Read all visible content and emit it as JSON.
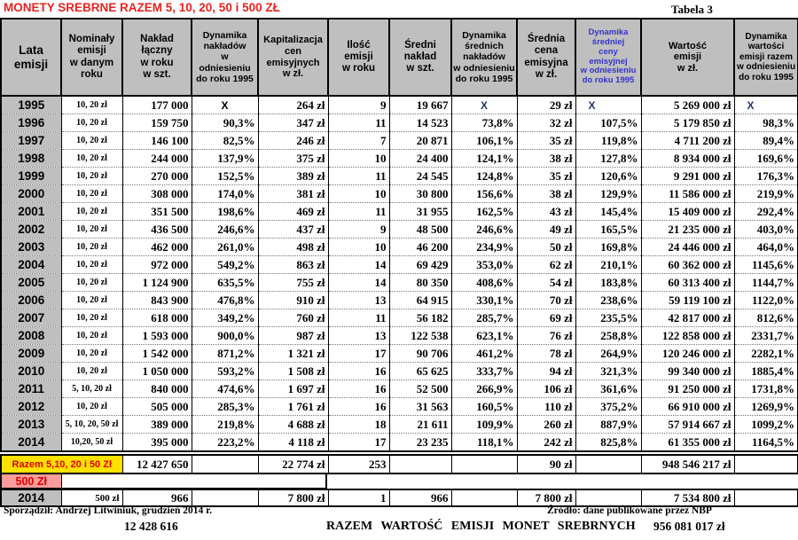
{
  "title": "MONETY SREBRNE RAZEM 5, 10, 20, 50 i 500 ZŁ",
  "table_number": "Tabela 3",
  "colors": {
    "title_red": "#E8231F",
    "label_red": "#E00000",
    "header_gray": "#BFBFBF",
    "razem_yellow": "#FFE100",
    "band_pink": "#F89C9C",
    "blue_header": "#3333CC",
    "x_blue": "#1F3864"
  },
  "table": {
    "headers": [
      "Lata\nemisji",
      "Nominały\nemisji\nw danym\nroku",
      "Nakład\nłączny\nw roku\nw szt.",
      "Dynamika\nnakładów\nw\nodniesieniu\ndo roku 1995",
      "Kapitalizacja\ncen\nemisyjnych\nw zł.",
      "Ilość\nemisji\nw roku",
      "Średni\nnakład\nw szt.",
      "Dynamika\nśrednich\nnakładów\nw odniesieniu\ndo roku 1995",
      "Średnia\ncena\nemisyjna\nw zł.",
      "Dynamika\nśredniej\nceny\nemisyjnej\nw odniesieniu\ndo roku 1995",
      "Wartość\nemisji\nw zł.",
      "Dynamika\nwartości\nemisji razem\nw odniesieniu\ndo roku 1995"
    ],
    "rows": [
      [
        "1995",
        "10, 20 zł",
        "177 000",
        "X",
        "264 zł",
        "9",
        "19 667",
        "X",
        "29 zł",
        "X",
        "5 269 000 zł",
        "X"
      ],
      [
        "1996",
        "10, 20 zł",
        "159 750",
        "90,3%",
        "347 zł",
        "11",
        "14 523",
        "73,8%",
        "32 zł",
        "107,5%",
        "5 179 850 zł",
        "98,3%"
      ],
      [
        "1997",
        "10, 20 zł",
        "146 100",
        "82,5%",
        "246 zł",
        "7",
        "20 871",
        "106,1%",
        "35 zł",
        "119,8%",
        "4 711 200 zł",
        "89,4%"
      ],
      [
        "1998",
        "10, 20 zł",
        "244 000",
        "137,9%",
        "375 zł",
        "10",
        "24 400",
        "124,1%",
        "38 zł",
        "127,8%",
        "8 934 000 zł",
        "169,6%"
      ],
      [
        "1999",
        "10, 20 zł",
        "270 000",
        "152,5%",
        "389 zł",
        "11",
        "24 545",
        "124,8%",
        "35 zł",
        "120,6%",
        "9 291 000 zł",
        "176,3%"
      ],
      [
        "2000",
        "10, 20 zł",
        "308 000",
        "174,0%",
        "381 zł",
        "10",
        "30 800",
        "156,6%",
        "38 zł",
        "129,9%",
        "11 586 000 zł",
        "219,9%"
      ],
      [
        "2001",
        "10, 20 zł",
        "351 500",
        "198,6%",
        "469 zł",
        "11",
        "31 955",
        "162,5%",
        "43 zł",
        "145,4%",
        "15 409 000 zł",
        "292,4%"
      ],
      [
        "2002",
        "10, 20 zł",
        "436 500",
        "246,6%",
        "437 zł",
        "9",
        "48 500",
        "246,6%",
        "49 zł",
        "165,5%",
        "21 235 000 zł",
        "403,0%"
      ],
      [
        "2003",
        "10, 20 zł",
        "462 000",
        "261,0%",
        "498 zł",
        "10",
        "46 200",
        "234,9%",
        "50 zł",
        "169,8%",
        "24 446 000 zł",
        "464,0%"
      ],
      [
        "2004",
        "10, 20 zł",
        "972 000",
        "549,2%",
        "863 zł",
        "14",
        "69 429",
        "353,0%",
        "62 zł",
        "210,1%",
        "60 362 000 zł",
        "1145,6%"
      ],
      [
        "2005",
        "10, 20 zł",
        "1 124 900",
        "635,5%",
        "755 zł",
        "14",
        "80 350",
        "408,6%",
        "54 zł",
        "183,8%",
        "60 313 400 zł",
        "1144,7%"
      ],
      [
        "2006",
        "10, 20 zł",
        "843 900",
        "476,8%",
        "910 zł",
        "13",
        "64 915",
        "330,1%",
        "70 zł",
        "238,6%",
        "59 119 100 zł",
        "1122,0%"
      ],
      [
        "2007",
        "10, 20 zł",
        "618 000",
        "349,2%",
        "760 zł",
        "11",
        "56 182",
        "285,7%",
        "69 zł",
        "235,5%",
        "42 817 000 zł",
        "812,6%"
      ],
      [
        "2008",
        "10, 20 zł",
        "1 593 000",
        "900,0%",
        "987 zł",
        "13",
        "122 538",
        "623,1%",
        "76 zł",
        "258,8%",
        "122 858 000 zł",
        "2331,7%"
      ],
      [
        "2009",
        "10, 20 zł",
        "1 542 000",
        "871,2%",
        "1 321 zł",
        "17",
        "90 706",
        "461,2%",
        "78 zł",
        "264,9%",
        "120 246 000 zł",
        "2282,1%"
      ],
      [
        "2010",
        "10, 20 zł",
        "1 050 000",
        "593,2%",
        "1 508 zł",
        "16",
        "65 625",
        "333,7%",
        "94 zł",
        "321,3%",
        "99 340 000 zł",
        "1885,4%"
      ],
      [
        "2011",
        "5, 10, 20 zł",
        "840 000",
        "474,6%",
        "1 697 zł",
        "16",
        "52 500",
        "266,9%",
        "106 zł",
        "361,6%",
        "91 250 000 zł",
        "1731,8%"
      ],
      [
        "2012",
        "10, 20 zł",
        "505 000",
        "285,3%",
        "1 761 zł",
        "16",
        "31 563",
        "160,5%",
        "110 zł",
        "375,2%",
        "66 910 000 zł",
        "1269,9%"
      ],
      [
        "2013",
        "5, 10, 20, 50 zł",
        "389 000",
        "219,8%",
        "4 688 zł",
        "18",
        "21 611",
        "109,9%",
        "260 zł",
        "887,9%",
        "57 914 667 zł",
        "1099,2%"
      ],
      [
        "2014",
        "10,20, 50 zł",
        "395 000",
        "223,2%",
        "4 118 zł",
        "17",
        "23 235",
        "118,1%",
        "242 zł",
        "825,8%",
        "61 355 000 zł",
        "1164,5%"
      ]
    ],
    "summary": {
      "razem_label": "Razem 5,10, 20 i 50 Zł",
      "razem_cells": [
        "12 427 650",
        "",
        "22 774 zł",
        "253",
        "",
        "",
        "90 zł",
        "",
        "948 546 217 zł",
        ""
      ],
      "band_500_label": "500 Zł",
      "row_2014_500": [
        "2014",
        "500 zł",
        "966",
        "",
        "7 800 zł",
        "1",
        "966",
        "",
        "7 800 zł",
        "",
        "7 534 800 zł",
        ""
      ]
    }
  },
  "footer": {
    "prepared_by": "Sporządził: Andrzej Litwiniuk, grudzień 2014 r.",
    "source": "Źródło: dane publikowane przez NBP",
    "total_mintage": "12 428 616",
    "grand_total_label": "RAZEM WARTOŚĆ EMISJI MONET SREBRNYCH",
    "grand_total_value": "956 081 017 zł"
  }
}
